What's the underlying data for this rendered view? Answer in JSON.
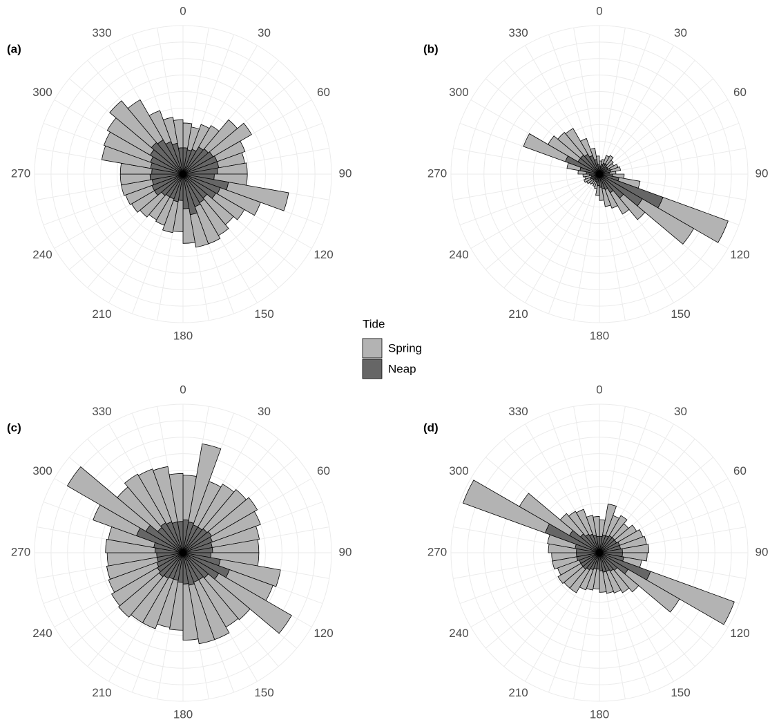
{
  "chart_data": [
    {
      "type": "rose",
      "panel_label": "(a)",
      "legend_title": "Tide",
      "legend": "center",
      "x": [
        5,
        15,
        25,
        35,
        45,
        55,
        65,
        75,
        85,
        95,
        105,
        115,
        125,
        135,
        145,
        155,
        165,
        175,
        185,
        195,
        205,
        215,
        225,
        235,
        245,
        255,
        265,
        275,
        285,
        295,
        305,
        315,
        325,
        335,
        345,
        355
      ],
      "xlim": [
        0,
        360
      ],
      "xticks": [
        0,
        30,
        60,
        90,
        120,
        150,
        180,
        210,
        240,
        270,
        300,
        330
      ],
      "ylim": [
        0,
        9
      ],
      "grid": true,
      "series": [
        {
          "name": "Neap",
          "color": "#666666",
          "values": [
            1.6,
            1.5,
            1.6,
            1.9,
            2.0,
            2.1,
            2.2,
            2.2,
            2.1,
            1.9,
            2.8,
            2.4,
            2.3,
            1.9,
            2.0,
            2.1,
            2.5,
            2.1,
            1.6,
            1.7,
            1.6,
            1.6,
            1.7,
            2.0,
            2.0,
            1.9,
            2.0,
            1.9,
            2.0,
            2.1,
            2.3,
            2.5,
            2.4,
            2.1,
            1.9,
            1.6
          ]
        },
        {
          "name": "Spring",
          "color": "#b3b3b3",
          "values": [
            1.5,
            1.4,
            1.6,
            1.5,
            2.3,
            2.7,
            1.8,
            1.6,
            1.8,
            2.0,
            3.7,
            2.6,
            2.0,
            2.1,
            2.3,
            2.4,
            2.0,
            2.1,
            1.9,
            1.9,
            1.7,
            1.6,
            1.7,
            1.6,
            1.7,
            1.9,
            1.8,
            1.9,
            3.0,
            3.0,
            3.0,
            3.3,
            2.8,
            2.0,
            1.6,
            1.7
          ]
        }
      ]
    },
    {
      "type": "rose",
      "panel_label": "(b)",
      "x": [
        5,
        15,
        25,
        35,
        45,
        55,
        65,
        75,
        85,
        95,
        105,
        115,
        125,
        135,
        145,
        155,
        165,
        175,
        185,
        195,
        205,
        215,
        225,
        235,
        245,
        255,
        265,
        275,
        285,
        295,
        305,
        315,
        325,
        335,
        345,
        355
      ],
      "xlim": [
        0,
        360
      ],
      "xticks": [
        0,
        30,
        60,
        90,
        120,
        150,
        180,
        210,
        240,
        270,
        300,
        330
      ],
      "ylim": [
        0,
        9
      ],
      "grid": true,
      "series": [
        {
          "name": "Neap",
          "color": "#666666",
          "values": [
            0.5,
            0.6,
            0.7,
            0.7,
            0.6,
            0.6,
            0.7,
            0.7,
            0.6,
            0.8,
            1.2,
            4.1,
            3.0,
            1.9,
            1.3,
            1.0,
            0.9,
            0.8,
            0.7,
            0.5,
            0.5,
            0.4,
            0.5,
            0.5,
            0.6,
            0.5,
            0.6,
            0.8,
            1.2,
            2.2,
            1.5,
            1.5,
            1.4,
            1.2,
            0.9,
            0.6
          ]
        },
        {
          "name": "Spring",
          "color": "#b3b3b3",
          "values": [
            0.3,
            0.3,
            0.5,
            0.6,
            0.5,
            0.4,
            0.5,
            0.6,
            0.4,
            0.7,
            1.3,
            4.2,
            3.6,
            1.7,
            1.5,
            1.2,
            1.1,
            0.8,
            0.6,
            0.4,
            0.3,
            0.3,
            0.3,
            0.4,
            0.4,
            0.4,
            0.4,
            0.5,
            0.8,
            2.7,
            2.1,
            1.8,
            1.8,
            1.1,
            0.7,
            0.5
          ]
        }
      ]
    },
    {
      "type": "rose",
      "panel_label": "(c)",
      "x": [
        5,
        15,
        25,
        35,
        45,
        55,
        65,
        75,
        85,
        95,
        105,
        115,
        125,
        135,
        145,
        155,
        165,
        175,
        185,
        195,
        205,
        215,
        225,
        235,
        245,
        255,
        265,
        275,
        285,
        295,
        305,
        315,
        325,
        335,
        345,
        355
      ],
      "xlim": [
        0,
        360
      ],
      "xticks": [
        0,
        30,
        60,
        90,
        120,
        150,
        180,
        210,
        240,
        270,
        300,
        330
      ],
      "ylim": [
        0,
        9
      ],
      "grid": true,
      "series": [
        {
          "name": "Neap",
          "color": "#666666",
          "values": [
            2.0,
            1.9,
            1.8,
            1.8,
            1.9,
            2.0,
            1.9,
            1.8,
            1.8,
            1.7,
            2.3,
            3.0,
            2.5,
            2.0,
            1.9,
            1.9,
            2.0,
            1.9,
            1.8,
            1.7,
            1.7,
            1.8,
            1.9,
            1.8,
            1.7,
            1.6,
            1.6,
            1.7,
            1.8,
            3.0,
            2.6,
            2.0,
            2.1,
            2.0,
            1.9,
            1.9
          ]
        },
        {
          "name": "Spring",
          "color": "#b3b3b3",
          "values": [
            2.7,
            4.8,
            2.8,
            3.0,
            3.1,
            3.2,
            3.1,
            2.9,
            2.8,
            2.9,
            3.7,
            2.8,
            5.1,
            3.3,
            3.3,
            3.7,
            3.6,
            3.4,
            2.9,
            2.9,
            3.2,
            3.1,
            3.2,
            3.2,
            3.1,
            3.1,
            3.0,
            3.0,
            2.8,
            2.8,
            5.5,
            3.2,
            3.4,
            3.4,
            3.4,
            2.9
          ]
        }
      ]
    },
    {
      "type": "rose",
      "panel_label": "(d)",
      "x": [
        5,
        15,
        25,
        35,
        45,
        55,
        65,
        75,
        85,
        95,
        105,
        115,
        125,
        135,
        145,
        155,
        165,
        175,
        185,
        195,
        205,
        215,
        225,
        235,
        245,
        255,
        265,
        275,
        285,
        295,
        305,
        315,
        325,
        335,
        345,
        355
      ],
      "xlim": [
        0,
        360
      ],
      "xticks": [
        0,
        30,
        60,
        90,
        120,
        150,
        180,
        210,
        240,
        270,
        300,
        330
      ],
      "ylim": [
        0,
        9
      ],
      "grid": true,
      "series": [
        {
          "name": "Neap",
          "color": "#666666",
          "values": [
            1.0,
            1.1,
            1.1,
            1.2,
            1.2,
            1.2,
            1.3,
            1.3,
            1.4,
            1.4,
            1.5,
            3.3,
            2.0,
            1.4,
            1.3,
            1.2,
            1.2,
            1.1,
            1.0,
            1.0,
            1.1,
            1.2,
            1.3,
            1.3,
            1.3,
            1.4,
            1.4,
            1.4,
            1.5,
            3.5,
            2.1,
            1.5,
            1.3,
            1.2,
            1.1,
            1.0
          ]
        },
        {
          "name": "Spring",
          "color": "#b3b3b3",
          "values": [
            1.0,
            1.9,
            1.3,
            1.4,
            1.1,
            1.4,
            1.5,
            1.6,
            1.6,
            1.5,
            1.1,
            5.4,
            3.6,
            1.7,
            1.5,
            1.4,
            1.3,
            1.3,
            1.2,
            1.3,
            1.3,
            1.6,
            1.5,
            1.6,
            1.4,
            1.5,
            1.5,
            1.7,
            1.7,
            5.3,
            3.5,
            1.6,
            1.6,
            1.6,
            1.2,
            1.2
          ]
        }
      ]
    }
  ]
}
